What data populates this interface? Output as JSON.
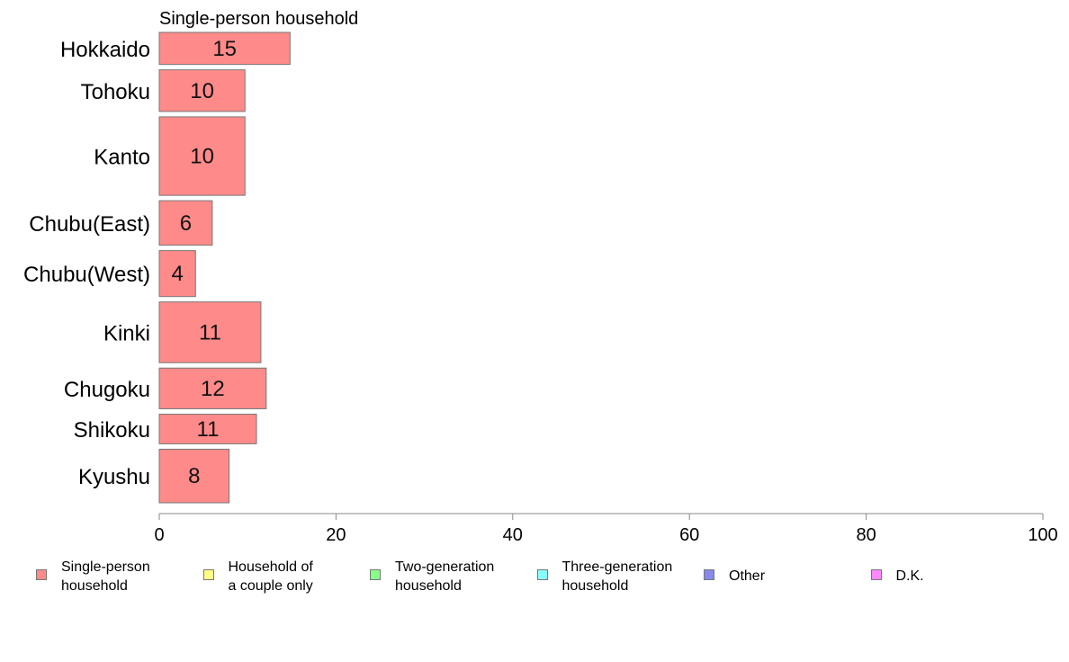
{
  "chart_data": {
    "type": "bar",
    "orientation": "horizontal",
    "stacked": true,
    "title": "Single-person household",
    "categories": [
      "Hokkaido",
      "Tohoku",
      "Kanto",
      "Chubu(East)",
      "Chubu(West)",
      "Kinki",
      "Chugoku",
      "Shikoku",
      "Kyushu"
    ],
    "category_weights": [
      0.67,
      0.87,
      1.64,
      0.93,
      0.96,
      1.27,
      0.85,
      0.62,
      1.12
    ],
    "series": [
      {
        "name": "Single-person household",
        "values": [
          14.8,
          9.7,
          9.7,
          6.0,
          4.1,
          11.5,
          12.1,
          11.0,
          7.9
        ],
        "color": "#ff8a8a"
      }
    ],
    "data_labels": [
      "15",
      "10",
      "10",
      "6",
      "4",
      "11",
      "12",
      "11",
      "8"
    ],
    "xlim": [
      0,
      100
    ],
    "xticks": [
      "0",
      "20",
      "40",
      "60",
      "80",
      "100"
    ],
    "grid": false,
    "legend": {
      "placement": "bottom",
      "entries": [
        {
          "label": "Single-person\nhousehold",
          "color": "#ff8a8a"
        },
        {
          "label": "Household of\na couple only",
          "color": "#ffff88"
        },
        {
          "label": "Two-generation\nhousehold",
          "color": "#88ff88"
        },
        {
          "label": "Three-generation\nhousehold",
          "color": "#88ffff"
        },
        {
          "label": "Other",
          "color": "#8888ee"
        },
        {
          "label": "D.K.",
          "color": "#ff88ff"
        }
      ]
    }
  }
}
